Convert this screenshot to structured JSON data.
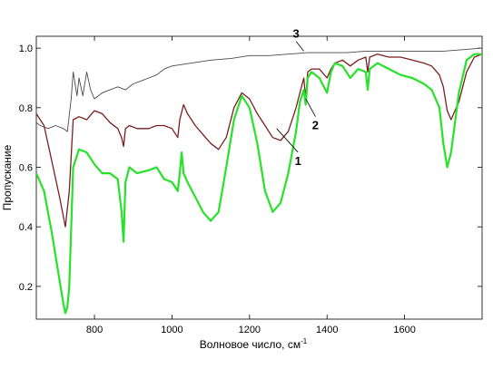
{
  "chart_data": {
    "type": "line",
    "title": "",
    "xlabel": "Волновое число, см",
    "xlabel_superscript": "-1",
    "ylabel": "Пропускание",
    "xlim": [
      650,
      1800
    ],
    "ylim": [
      0.09,
      1.04
    ],
    "xticks": [
      800,
      1000,
      1200,
      1400,
      1600
    ],
    "yticks": [
      0.2,
      0.4,
      0.6,
      0.8,
      1.0
    ],
    "ytick_labels": [
      "0.2",
      "0.4",
      "0.6",
      "0.8",
      "1.0"
    ],
    "grid": false,
    "series": [
      {
        "name": "3",
        "color": "#4a4a4a",
        "x": [
          650,
          660,
          680,
          700,
          720,
          730,
          740,
          745,
          750,
          755,
          760,
          770,
          780,
          790,
          800,
          820,
          840,
          860,
          880,
          900,
          920,
          940,
          960,
          980,
          1000,
          1050,
          1100,
          1150,
          1200,
          1250,
          1300,
          1350,
          1400,
          1450,
          1500,
          1550,
          1600,
          1650,
          1700,
          1750,
          1800
        ],
        "y": [
          0.75,
          0.74,
          0.73,
          0.74,
          0.73,
          0.72,
          0.83,
          0.92,
          0.88,
          0.84,
          0.9,
          0.84,
          0.92,
          0.86,
          0.83,
          0.85,
          0.86,
          0.87,
          0.86,
          0.88,
          0.89,
          0.9,
          0.91,
          0.93,
          0.94,
          0.95,
          0.96,
          0.965,
          0.975,
          0.975,
          0.98,
          0.985,
          0.985,
          0.985,
          0.99,
          0.99,
          0.99,
          0.99,
          0.99,
          0.995,
          1.0
        ]
      },
      {
        "name": "2",
        "color": "#7a1f1f",
        "x": [
          650,
          670,
          690,
          710,
          725,
          735,
          745,
          760,
          780,
          800,
          820,
          840,
          860,
          870,
          875,
          880,
          890,
          910,
          940,
          960,
          980,
          1000,
          1015,
          1020,
          1030,
          1040,
          1060,
          1080,
          1100,
          1120,
          1140,
          1160,
          1180,
          1200,
          1220,
          1240,
          1260,
          1280,
          1300,
          1320,
          1330,
          1340,
          1345,
          1350,
          1360,
          1380,
          1400,
          1410,
          1420,
          1440,
          1460,
          1480,
          1500,
          1505,
          1510,
          1530,
          1560,
          1590,
          1620,
          1650,
          1670,
          1690,
          1700,
          1710,
          1720,
          1740,
          1760,
          1780,
          1800
        ],
        "y": [
          0.78,
          0.74,
          0.62,
          0.5,
          0.4,
          0.52,
          0.76,
          0.77,
          0.76,
          0.79,
          0.78,
          0.75,
          0.73,
          0.7,
          0.67,
          0.73,
          0.74,
          0.73,
          0.73,
          0.74,
          0.74,
          0.73,
          0.7,
          0.76,
          0.81,
          0.78,
          0.74,
          0.71,
          0.68,
          0.66,
          0.7,
          0.8,
          0.85,
          0.83,
          0.78,
          0.74,
          0.7,
          0.69,
          0.72,
          0.8,
          0.85,
          0.9,
          0.83,
          0.92,
          0.93,
          0.93,
          0.9,
          0.93,
          0.95,
          0.96,
          0.94,
          0.96,
          0.97,
          0.92,
          0.97,
          0.98,
          0.97,
          0.97,
          0.96,
          0.95,
          0.94,
          0.91,
          0.87,
          0.79,
          0.76,
          0.82,
          0.92,
          0.97,
          0.98
        ]
      },
      {
        "name": "1",
        "color": "#27e22a",
        "x": [
          650,
          670,
          690,
          710,
          720,
          725,
          730,
          735,
          745,
          760,
          780,
          800,
          820,
          840,
          860,
          870,
          875,
          880,
          890,
          910,
          940,
          960,
          980,
          1000,
          1015,
          1020,
          1025,
          1030,
          1040,
          1060,
          1080,
          1100,
          1120,
          1140,
          1160,
          1180,
          1200,
          1220,
          1240,
          1260,
          1280,
          1300,
          1320,
          1330,
          1340,
          1345,
          1350,
          1360,
          1380,
          1400,
          1410,
          1420,
          1440,
          1460,
          1480,
          1500,
          1505,
          1510,
          1530,
          1560,
          1590,
          1620,
          1650,
          1670,
          1690,
          1700,
          1710,
          1720,
          1740,
          1760,
          1780,
          1800
        ],
        "y": [
          0.58,
          0.52,
          0.38,
          0.22,
          0.14,
          0.11,
          0.13,
          0.2,
          0.6,
          0.66,
          0.65,
          0.61,
          0.58,
          0.58,
          0.56,
          0.45,
          0.35,
          0.55,
          0.6,
          0.58,
          0.59,
          0.6,
          0.56,
          0.55,
          0.52,
          0.58,
          0.65,
          0.58,
          0.55,
          0.5,
          0.45,
          0.42,
          0.45,
          0.6,
          0.76,
          0.84,
          0.8,
          0.68,
          0.52,
          0.45,
          0.48,
          0.58,
          0.72,
          0.82,
          0.86,
          0.81,
          0.9,
          0.92,
          0.9,
          0.85,
          0.92,
          0.95,
          0.94,
          0.9,
          0.93,
          0.92,
          0.86,
          0.93,
          0.95,
          0.93,
          0.91,
          0.9,
          0.88,
          0.86,
          0.8,
          0.68,
          0.6,
          0.65,
          0.85,
          0.96,
          0.98,
          0.98
        ]
      }
    ],
    "annotations": [
      {
        "text": "3",
        "series": "3",
        "point": [
          1340,
          0.99
        ],
        "label_at": [
          1320,
          1.035
        ]
      },
      {
        "text": "2",
        "series": "2",
        "point": [
          1345,
          0.83
        ],
        "label_at": [
          1370,
          0.74
        ]
      },
      {
        "text": "1",
        "series": "1",
        "point": [
          1270,
          0.73
        ],
        "label_at": [
          1325,
          0.62
        ]
      }
    ]
  }
}
